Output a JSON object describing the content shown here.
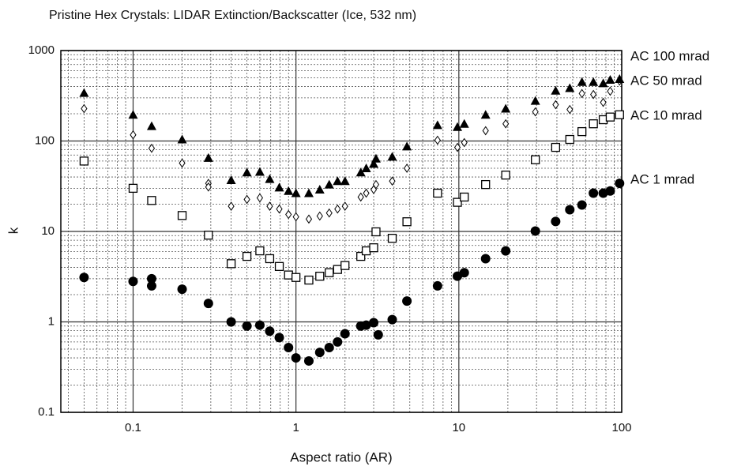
{
  "chart_data": {
    "type": "scatter",
    "title": "Pristine Hex Crystals: LIDAR Extinction/Backscatter  (Ice, 532 nm)",
    "x_label": "Aspect ratio (AR)",
    "y_label": "k",
    "log_x": true,
    "log_y": true,
    "grid": true,
    "xlim": [
      0.036,
      100
    ],
    "xticks": [
      0.1,
      1,
      10,
      100
    ],
    "ylim": [
      0.1,
      1000
    ],
    "yticks": [
      0.1,
      1,
      10,
      100,
      1000
    ],
    "series": [
      {
        "name": "AC 1 mrad",
        "color": "#000000",
        "marker": "circle",
        "x": [
          0.05,
          0.1,
          0.13,
          0.13,
          0.2,
          0.29,
          0.4,
          0.5,
          0.6,
          0.69,
          0.79,
          0.9,
          1.0,
          1.2,
          1.4,
          1.6,
          1.8,
          2.0,
          2.5,
          2.7,
          3.0,
          3.2,
          3.9,
          4.8,
          7.4,
          9.8,
          10.8,
          14.6,
          19.4,
          29.5,
          39.3,
          48,
          57,
          67,
          77,
          85,
          97
        ],
        "values": [
          3.1,
          2.8,
          3.0,
          2.5,
          2.3,
          1.6,
          1.0,
          0.9,
          0.92,
          0.79,
          0.67,
          0.52,
          0.4,
          0.37,
          0.46,
          0.52,
          0.6,
          0.74,
          0.9,
          0.92,
          0.98,
          0.72,
          1.06,
          1.7,
          2.5,
          3.2,
          3.5,
          5.0,
          6.1,
          10.1,
          12.9,
          17.4,
          19.6,
          26.5,
          26.5,
          28,
          34
        ]
      },
      {
        "name": "AC 10 mrad",
        "color": "#000000",
        "marker": "square",
        "x": [
          0.05,
          0.1,
          0.13,
          0.2,
          0.29,
          0.4,
          0.5,
          0.6,
          0.69,
          0.79,
          0.9,
          1.0,
          1.2,
          1.4,
          1.6,
          1.8,
          2.0,
          2.5,
          2.7,
          3.0,
          3.1,
          3.9,
          4.8,
          7.4,
          9.8,
          10.8,
          14.6,
          19.4,
          29.5,
          39.3,
          48,
          57,
          67,
          77,
          85,
          97
        ],
        "values": [
          60,
          30,
          22,
          15,
          9.1,
          4.4,
          5.3,
          6.1,
          5.0,
          4.1,
          3.3,
          3.1,
          2.9,
          3.2,
          3.5,
          3.8,
          4.2,
          5.3,
          6.1,
          6.6,
          9.9,
          8.4,
          12.8,
          26.5,
          21,
          24,
          33,
          42,
          62,
          85,
          104,
          127,
          155,
          172,
          184,
          195
        ]
      },
      {
        "name": "AC 50 mrad",
        "color": "#000000",
        "marker": "diamond",
        "x": [
          0.05,
          0.1,
          0.13,
          0.2,
          0.29,
          0.29,
          0.4,
          0.5,
          0.6,
          0.69,
          0.79,
          0.9,
          1.0,
          1.2,
          1.4,
          1.6,
          1.8,
          2.0,
          2.5,
          2.7,
          3.0,
          3.1,
          3.9,
          4.8,
          7.4,
          9.8,
          10.8,
          14.6,
          19.4,
          29.5,
          39.3,
          48,
          57,
          67,
          77,
          85,
          97
        ],
        "values": [
          228,
          117,
          83,
          57,
          34,
          31,
          19,
          22.6,
          23.5,
          19,
          17.7,
          15.4,
          14.5,
          13.7,
          14.8,
          16,
          17.7,
          19,
          24,
          26.5,
          29,
          33,
          36,
          50,
          102,
          85,
          96,
          130,
          155,
          210,
          252,
          223,
          335,
          327,
          267,
          355,
          460
        ]
      },
      {
        "name": "AC 100 mrad",
        "color": "#000000",
        "marker": "triangle",
        "x": [
          0.05,
          0.1,
          0.13,
          0.2,
          0.29,
          0.4,
          0.5,
          0.6,
          0.69,
          0.79,
          0.9,
          1.0,
          1.2,
          1.4,
          1.6,
          1.8,
          2.0,
          2.5,
          2.7,
          3.0,
          3.1,
          3.9,
          4.8,
          7.4,
          9.8,
          10.8,
          14.6,
          19.4,
          29.5,
          39.3,
          48,
          57,
          67,
          77,
          85,
          97
        ],
        "values": [
          340,
          195,
          146,
          104,
          65,
          37,
          45,
          45.7,
          38,
          30.6,
          28,
          26.5,
          26.5,
          29,
          33,
          36,
          36,
          45,
          50,
          56,
          64,
          67,
          87,
          150,
          143,
          155,
          195,
          228,
          278,
          360,
          385,
          450,
          450,
          435,
          475,
          485
        ]
      }
    ]
  }
}
